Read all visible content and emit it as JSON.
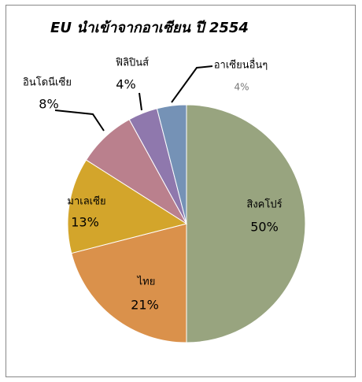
{
  "chart_data": {
    "type": "pie",
    "title": "EU นำเข้าจากอาเซียน ปี 2554",
    "categories": [
      "สิงคโปร์",
      "ไทย",
      "มาเลเซีย",
      "อินโดนีเซีย",
      "ฟิลิปินส์",
      "อาเซียนอื่นๆ"
    ],
    "values": [
      50,
      21,
      13,
      8,
      4,
      4
    ],
    "value_labels": [
      "50%",
      "21%",
      "13%",
      "8%",
      "4%",
      "4%"
    ],
    "colors": [
      "#98a47f",
      "#da914b",
      "#d3a52b",
      "#ba808d",
      "#8f78ad",
      "#7592b6"
    ]
  }
}
